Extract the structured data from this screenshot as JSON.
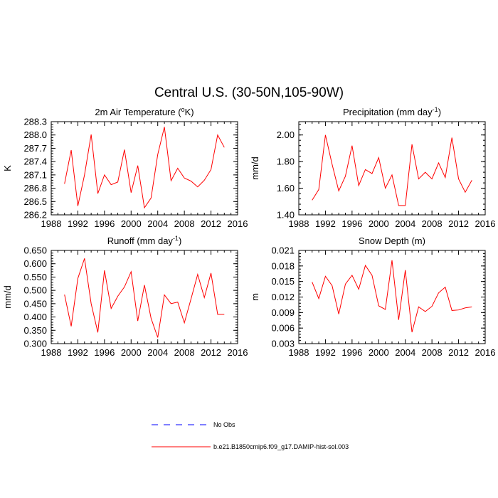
{
  "title": "Central U.S. (30-50N,105-90W)",
  "legend": [
    {
      "label": "No Obs",
      "color": "#0000ff",
      "dash": "dashed"
    },
    {
      "label": "b.e21.B1850cmip6.f09_g17.DAMIP-hist-sol.003",
      "color": "#ff0000",
      "dash": "solid"
    }
  ],
  "chart_data": [
    {
      "type": "line",
      "title": "2m Air Temperature (",
      "title_sup": "o",
      "title_end": "K)",
      "ylabel": "K",
      "xlim": [
        1988,
        2016
      ],
      "ylim": [
        286.2,
        288.3
      ],
      "xticks": [
        "1988",
        "1992",
        "1996",
        "2000",
        "2004",
        "2008",
        "2012",
        "2016"
      ],
      "yticks": [
        "286.2",
        "286.5",
        "286.8",
        "287.1",
        "287.4",
        "287.7",
        "288.0",
        "288.3"
      ],
      "x": [
        1990,
        1991,
        1992,
        1993,
        1994,
        1995,
        1996,
        1997,
        1998,
        1999,
        2000,
        2001,
        2002,
        2003,
        2004,
        2005,
        2006,
        2007,
        2008,
        2009,
        2010,
        2011,
        2012,
        2013,
        2014
      ],
      "series": [
        {
          "color": "#ff0000",
          "values": [
            286.9,
            287.66,
            286.4,
            287.1,
            288.01,
            286.68,
            287.1,
            286.88,
            286.94,
            287.67,
            286.7,
            287.31,
            286.36,
            286.58,
            287.56,
            288.18,
            286.97,
            287.25,
            287.03,
            286.96,
            286.83,
            286.98,
            287.22,
            288.0,
            287.72
          ]
        }
      ]
    },
    {
      "type": "line",
      "title": "Precipitation (mm day",
      "title_sup": "-1",
      "title_end": ")",
      "ylabel": "mm/d",
      "xlim": [
        1988,
        2016
      ],
      "ylim": [
        1.4,
        2.1
      ],
      "xticks": [
        "1988",
        "1992",
        "1996",
        "2000",
        "2004",
        "2008",
        "2012",
        "2016"
      ],
      "yticks": [
        "1.40",
        "1.60",
        "1.80",
        "2.00"
      ],
      "x": [
        1990,
        1991,
        1992,
        1993,
        1994,
        1995,
        1996,
        1997,
        1998,
        1999,
        2000,
        2001,
        2002,
        2003,
        2004,
        2005,
        2006,
        2007,
        2008,
        2009,
        2010,
        2011,
        2012,
        2013,
        2014
      ],
      "series": [
        {
          "color": "#ff0000",
          "values": [
            1.51,
            1.59,
            2.0,
            1.78,
            1.58,
            1.69,
            1.92,
            1.62,
            1.74,
            1.71,
            1.83,
            1.6,
            1.7,
            1.47,
            1.47,
            1.93,
            1.67,
            1.72,
            1.67,
            1.79,
            1.68,
            1.98,
            1.67,
            1.57,
            1.66
          ]
        }
      ]
    },
    {
      "type": "line",
      "title": "Runoff (mm day",
      "title_sup": "-1",
      "title_end": ")",
      "ylabel": "mm/d",
      "xlim": [
        1988,
        2016
      ],
      "ylim": [
        0.3,
        0.65
      ],
      "xticks": [
        "1988",
        "1992",
        "1996",
        "2000",
        "2004",
        "2008",
        "2012",
        "2016"
      ],
      "yticks": [
        "0.300",
        "0.350",
        "0.400",
        "0.450",
        "0.500",
        "0.550",
        "0.600",
        "0.650"
      ],
      "x": [
        1990,
        1991,
        1992,
        1993,
        1994,
        1995,
        1996,
        1997,
        1998,
        1999,
        2000,
        2001,
        2002,
        2003,
        2004,
        2005,
        2006,
        2007,
        2008,
        2009,
        2010,
        2011,
        2012,
        2013,
        2014
      ],
      "series": [
        {
          "color": "#ff0000",
          "values": [
            0.484,
            0.365,
            0.545,
            0.62,
            0.45,
            0.342,
            0.575,
            0.432,
            0.478,
            0.513,
            0.57,
            0.385,
            0.52,
            0.395,
            0.323,
            0.483,
            0.45,
            0.456,
            0.378,
            0.468,
            0.56,
            0.473,
            0.565,
            0.41,
            0.41
          ]
        }
      ]
    },
    {
      "type": "line",
      "title": "Snow Depth (m)",
      "title_sup": "",
      "title_end": "",
      "ylabel": "m",
      "xlim": [
        1988,
        2016
      ],
      "ylim": [
        0.003,
        0.021
      ],
      "xticks": [
        "1988",
        "1992",
        "1996",
        "2000",
        "2004",
        "2008",
        "2012",
        "2016"
      ],
      "yticks": [
        "0.003",
        "0.006",
        "0.009",
        "0.012",
        "0.015",
        "0.018",
        "0.021"
      ],
      "x": [
        1990,
        1991,
        1992,
        1993,
        1994,
        1995,
        1996,
        1997,
        1998,
        1999,
        2000,
        2001,
        2002,
        2003,
        2004,
        2005,
        2006,
        2007,
        2008,
        2009,
        2010,
        2011,
        2012,
        2013,
        2014
      ],
      "series": [
        {
          "color": "#ff0000",
          "values": [
            0.0149,
            0.0117,
            0.016,
            0.0142,
            0.0087,
            0.0145,
            0.0162,
            0.0135,
            0.0181,
            0.0162,
            0.0103,
            0.0096,
            0.0191,
            0.0076,
            0.0172,
            0.0052,
            0.0101,
            0.0092,
            0.0102,
            0.0128,
            0.0139,
            0.0094,
            0.0095,
            0.0099,
            0.0101
          ]
        }
      ]
    }
  ]
}
